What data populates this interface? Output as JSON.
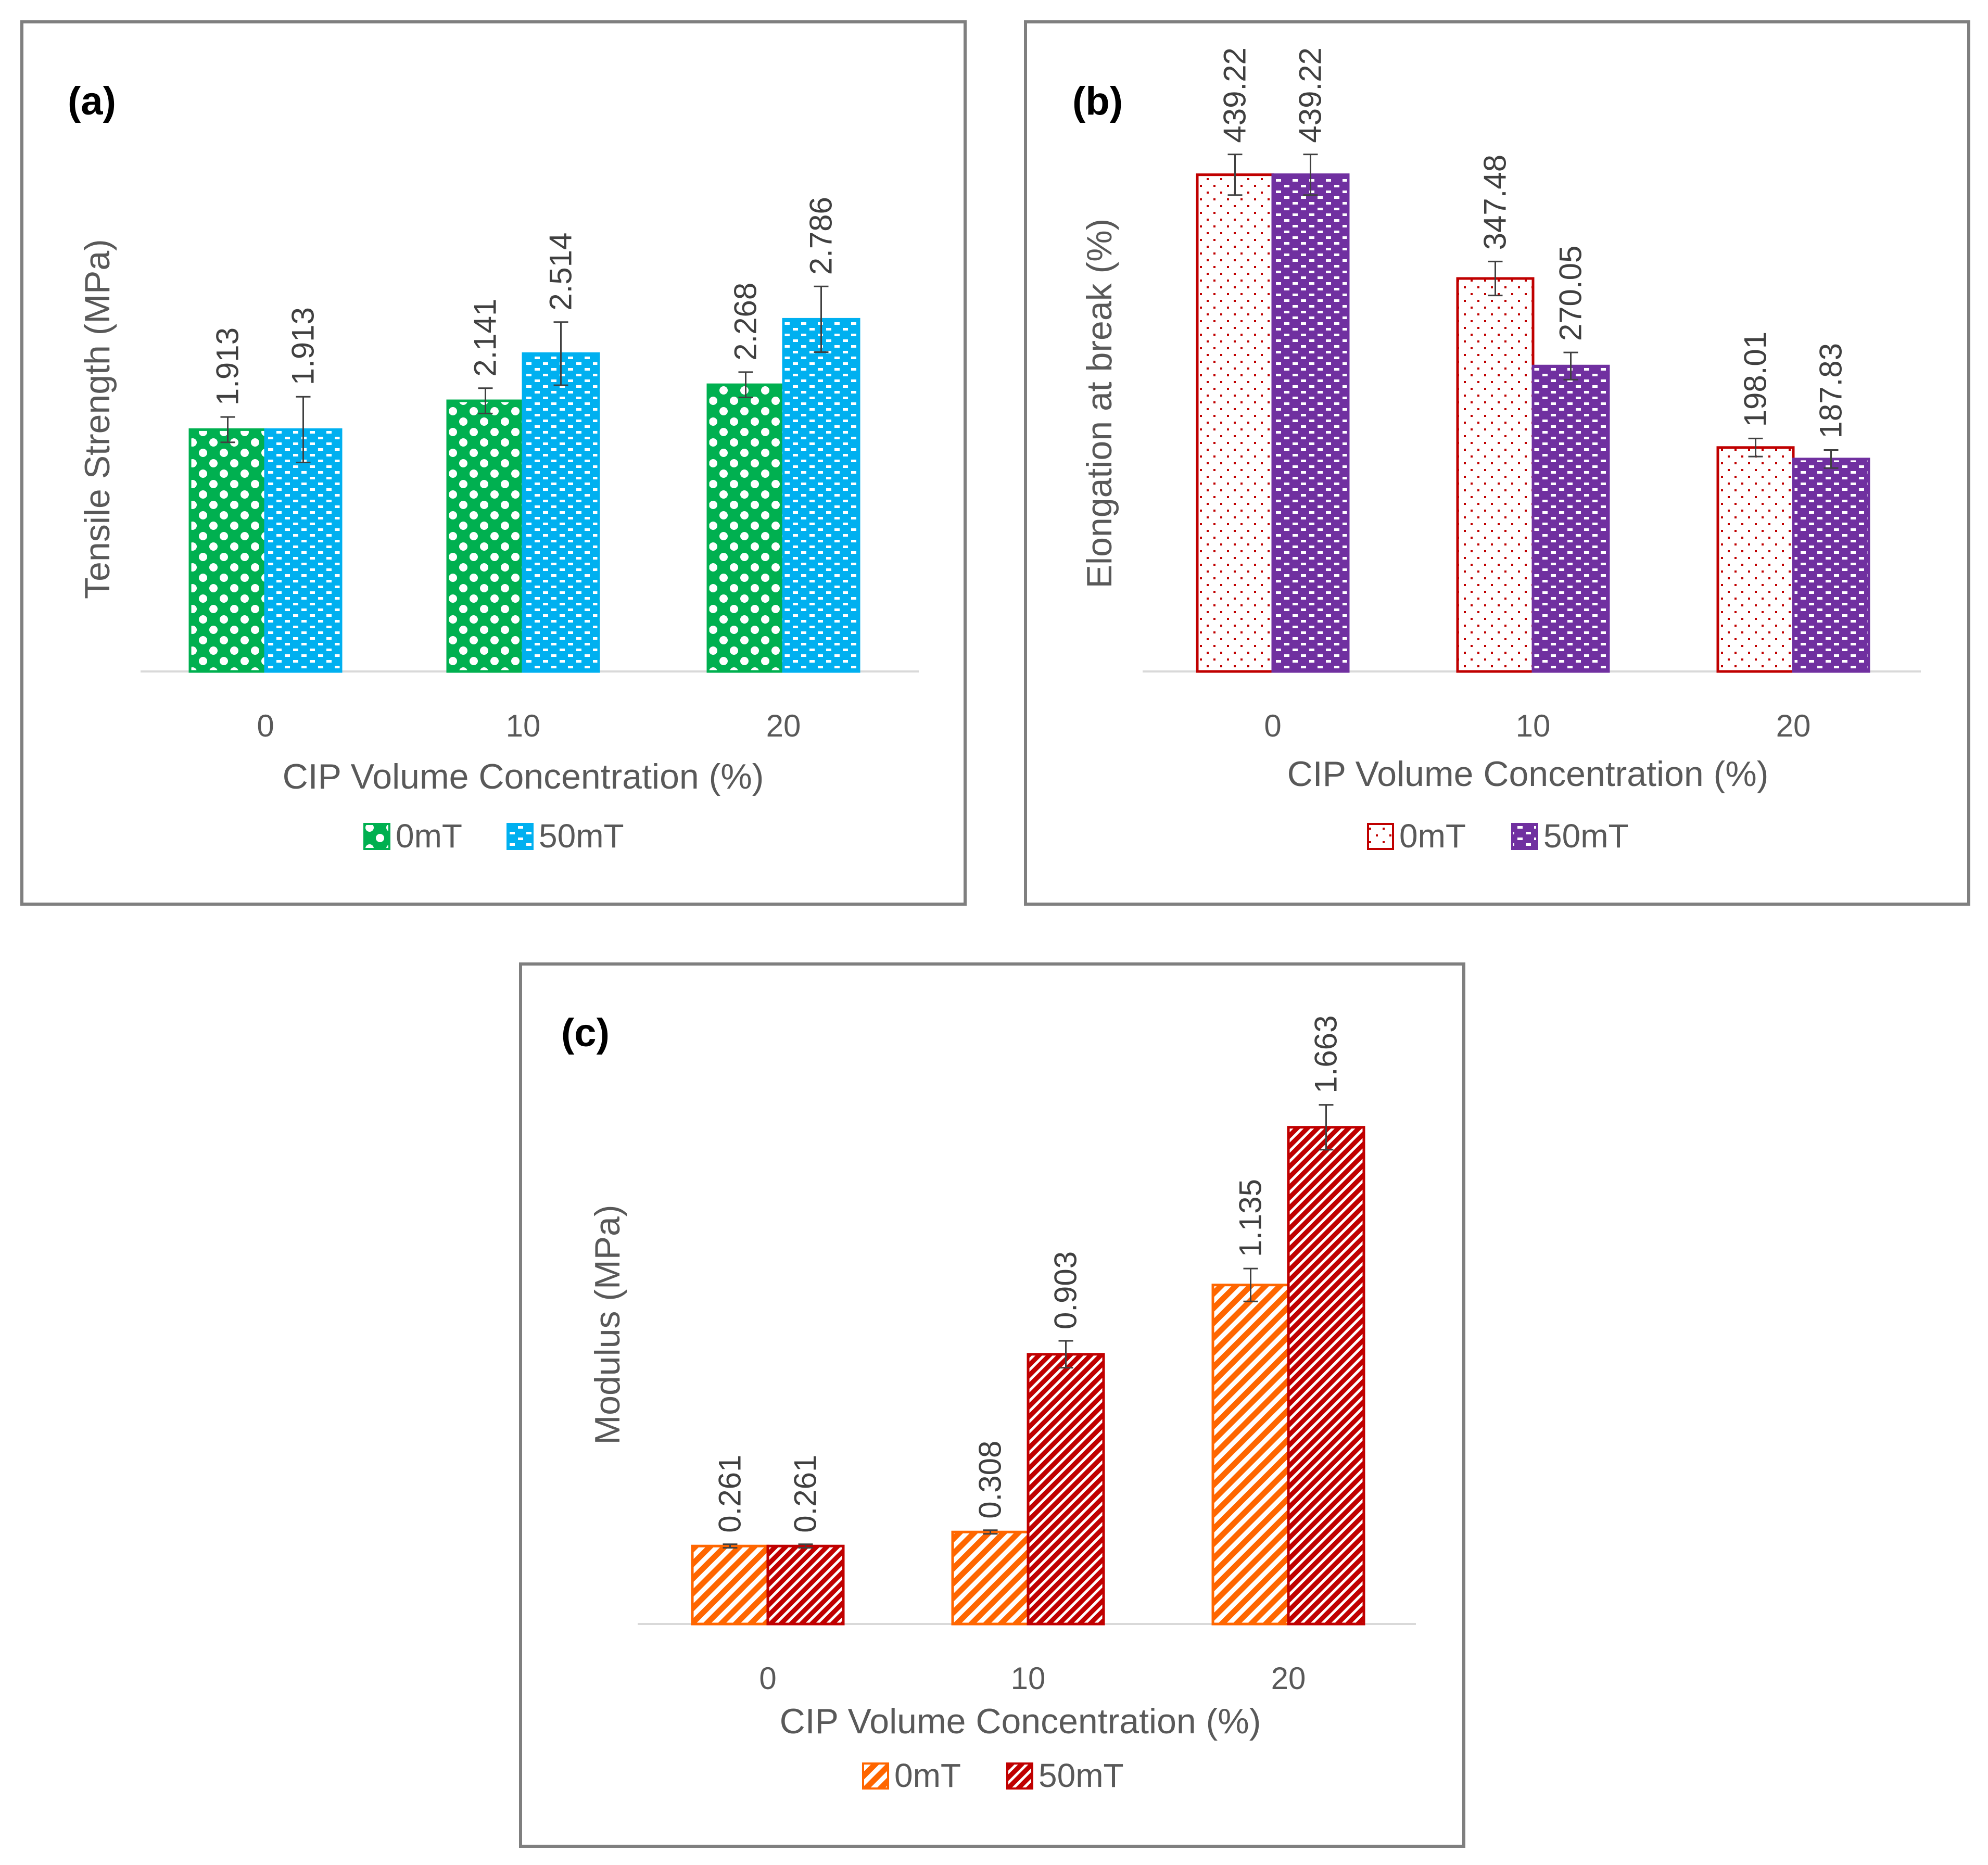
{
  "figure": {
    "panels": [
      "a",
      "b",
      "c"
    ]
  },
  "chart_data": [
    {
      "id": "a",
      "type": "bar",
      "panel_label": "(a)",
      "title": "",
      "xlabel": "CIP Volume Concentration (%)",
      "ylabel": "Tensile Strength (MPa)",
      "categories": [
        "0",
        "10",
        "20"
      ],
      "ylim": [
        0,
        3.5
      ],
      "grid": false,
      "legend": "bottom-center",
      "series": [
        {
          "name": "0mT",
          "values": [
            1.913,
            2.141,
            2.268
          ],
          "labels": [
            "1.913",
            "2.141",
            "2.268"
          ],
          "errors": [
            0.1,
            0.1,
            0.1
          ],
          "color": "#00b050",
          "pattern": "checker"
        },
        {
          "name": "50mT",
          "values": [
            1.913,
            2.514,
            2.786
          ],
          "labels": [
            "1.913",
            "2.514",
            "2.786"
          ],
          "errors": [
            0.26,
            0.25,
            0.26
          ],
          "color": "#00b0f0",
          "pattern": "brick"
        }
      ]
    },
    {
      "id": "b",
      "type": "bar",
      "panel_label": "(b)",
      "title": "",
      "xlabel": "CIP Volume Concentration (%)",
      "ylabel": "Elongation at break (%)",
      "categories": [
        "0",
        "10",
        "20"
      ],
      "ylim": [
        0,
        440
      ],
      "grid": false,
      "legend": "bottom-center",
      "series": [
        {
          "name": "0mT",
          "values": [
            439.22,
            347.48,
            198.01
          ],
          "labels": [
            "439.22",
            "347.48",
            "198.01"
          ],
          "errors": [
            18,
            15,
            8
          ],
          "color": "#c00000",
          "pattern": "dots"
        },
        {
          "name": "50mT",
          "values": [
            439.22,
            270.05,
            187.83
          ],
          "labels": [
            "439.22",
            "270.05",
            "187.83"
          ],
          "errors": [
            18,
            12,
            8
          ],
          "color": "#7030a0",
          "pattern": "brick"
        }
      ]
    },
    {
      "id": "c",
      "type": "bar",
      "panel_label": "(c)",
      "title": "",
      "xlabel": "CIP Volume Concentration (%)",
      "ylabel": "Modulus (MPa)",
      "categories": [
        "0",
        "10",
        "20"
      ],
      "ylim": [
        0,
        1.76
      ],
      "grid": false,
      "legend": "bottom-center",
      "series": [
        {
          "name": "0mT",
          "values": [
            0.261,
            0.308,
            1.135
          ],
          "labels": [
            "0.261",
            "0.308",
            "1.135"
          ],
          "errors": [
            0.006,
            0.006,
            0.055
          ],
          "color": "#ff6600",
          "pattern": "diag-light"
        },
        {
          "name": "50mT",
          "values": [
            0.261,
            0.903,
            1.663
          ],
          "labels": [
            "0.261",
            "0.903",
            "1.663"
          ],
          "errors": [
            0.006,
            0.045,
            0.075
          ],
          "color": "#c00000",
          "pattern": "diag-dense"
        }
      ]
    }
  ]
}
